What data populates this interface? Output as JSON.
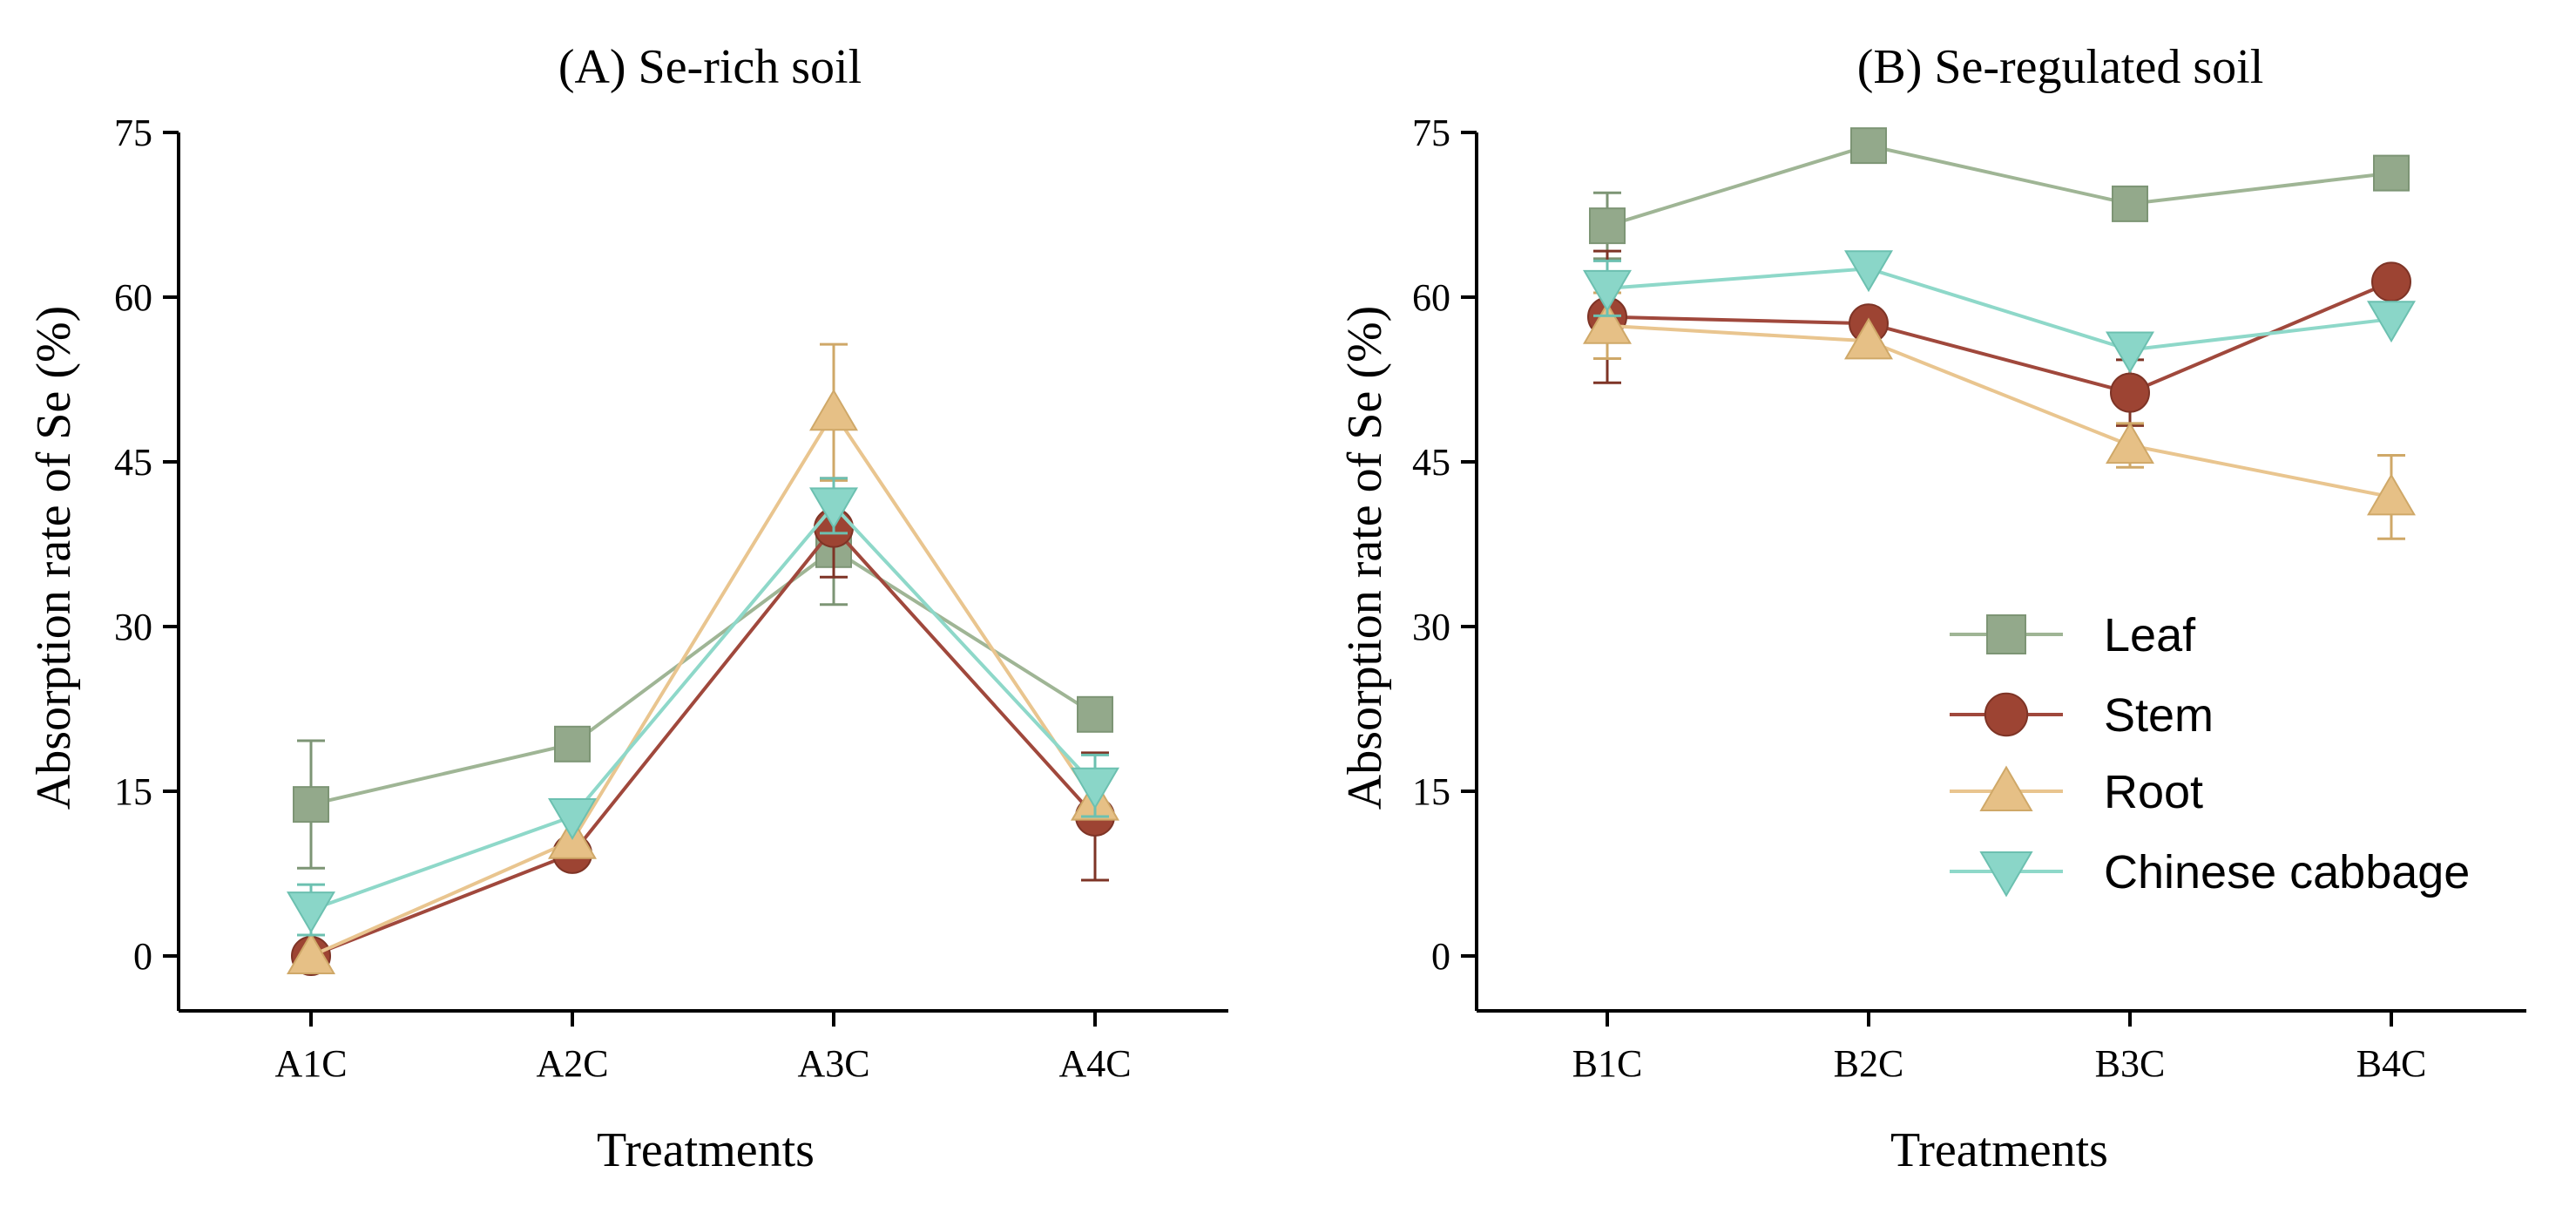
{
  "chart_data": [
    {
      "type": "line",
      "panel": "A",
      "title": "(A) Se-rich soil",
      "xlabel": "Treatments",
      "ylabel": "Absorption rate of Se (%)",
      "ylim": [
        -5,
        75
      ],
      "yticks": [
        0,
        15,
        30,
        45,
        60,
        75
      ],
      "categories": [
        "A1C",
        "A2C",
        "A3C",
        "A4C"
      ],
      "series": [
        {
          "name": "Leaf",
          "marker": "square",
          "values": [
            13.8,
            19.3,
            37.0,
            22.0
          ],
          "errors": [
            5.8,
            0,
            5.0,
            0
          ]
        },
        {
          "name": "Stem",
          "marker": "circle",
          "values": [
            0.0,
            9.3,
            39.0,
            12.7
          ],
          "errors": [
            0,
            0,
            4.5,
            5.8
          ]
        },
        {
          "name": "Root",
          "marker": "triangle-up",
          "values": [
            0.0,
            10.5,
            49.5,
            14.0
          ],
          "errors": [
            0,
            0,
            6.2,
            0
          ]
        },
        {
          "name": "Chinese cabbage",
          "marker": "triangle-down",
          "values": [
            4.2,
            12.7,
            41.0,
            15.5
          ],
          "errors": [
            2.3,
            0,
            2.5,
            2.8
          ]
        }
      ]
    },
    {
      "type": "line",
      "panel": "B",
      "title": "(B) Se-regulated soil",
      "xlabel": "Treatments",
      "ylabel": "Absorption rate of Se (%)",
      "ylim": [
        -5,
        75
      ],
      "yticks": [
        0,
        15,
        30,
        45,
        60,
        75
      ],
      "categories": [
        "B1C",
        "B2C",
        "B3C",
        "B4C"
      ],
      "legend": {
        "position": "bottom-right",
        "entries": [
          "Leaf",
          "Stem",
          "Root",
          "Chinese cabbage"
        ]
      },
      "series": [
        {
          "name": "Leaf",
          "marker": "square",
          "values": [
            66.5,
            73.8,
            68.5,
            71.3
          ],
          "errors": [
            3.0,
            0,
            0,
            0
          ]
        },
        {
          "name": "Stem",
          "marker": "circle",
          "values": [
            58.2,
            57.6,
            51.3,
            61.4
          ],
          "errors": [
            6.0,
            0,
            3.0,
            0
          ]
        },
        {
          "name": "Root",
          "marker": "triangle-up",
          "values": [
            57.4,
            56.0,
            46.5,
            41.8
          ],
          "errors": [
            3.0,
            0,
            2.0,
            3.8
          ]
        },
        {
          "name": "Chinese cabbage",
          "marker": "triangle-down",
          "values": [
            60.8,
            62.6,
            55.2,
            58.0
          ],
          "errors": [
            2.5,
            0,
            0,
            0
          ]
        }
      ]
    }
  ],
  "colors": {
    "Leaf": {
      "line": "#9fb595",
      "fill": "#93a98b",
      "stroke": "#7d9575"
    },
    "Stem": {
      "line": "#a0483c",
      "fill": "#9d4433",
      "stroke": "#7e3426"
    },
    "Root": {
      "line": "#e9c58f",
      "fill": "#e6c086",
      "stroke": "#cfa868"
    },
    "Chinese cabbage": {
      "line": "#8ed8c9",
      "fill": "#8ad6c8",
      "stroke": "#6cc0b0"
    }
  }
}
